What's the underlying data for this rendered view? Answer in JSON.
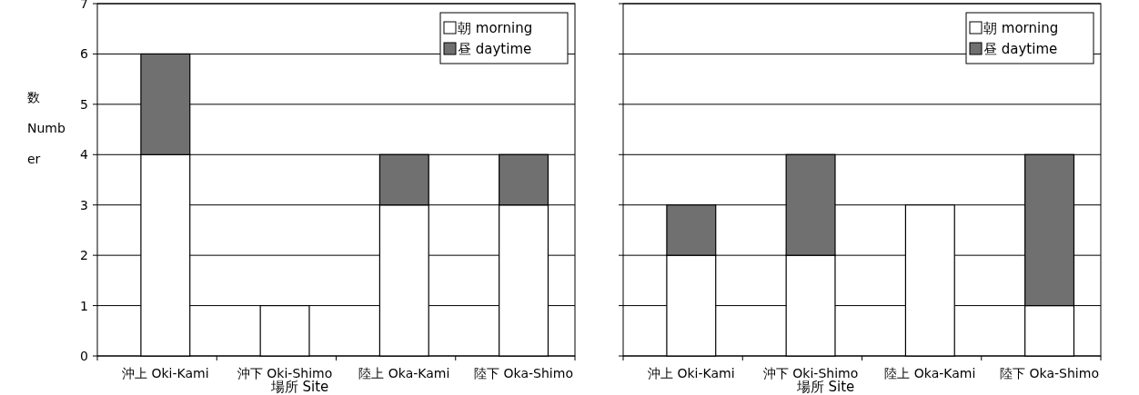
{
  "chart_data": [
    {
      "type": "bar",
      "stacked": true,
      "xlabel": "場所 Site",
      "ylabel": "数 Number",
      "categories": [
        "沖上 Oki-Kami",
        "沖下 Oki-Shimo",
        "陸上 Oka-Kami",
        "陸下 Oka-Shimo"
      ],
      "series": [
        {
          "name": "朝 morning",
          "color": "#ffffff",
          "values": [
            4,
            1,
            3,
            3
          ]
        },
        {
          "name": "昼 daytime",
          "color": "#707070",
          "values": [
            2,
            0,
            1,
            1
          ]
        }
      ],
      "ylim": [
        0,
        7
      ],
      "yticks": [
        0,
        1,
        2,
        3,
        4,
        5,
        6,
        7
      ],
      "grid": "y",
      "legend": "top right"
    },
    {
      "type": "bar",
      "stacked": true,
      "xlabel": "場所 Site",
      "categories": [
        "沖上 Oki-Kami",
        "沖下 Oki-Shimo",
        "陸上 Oka-Kami",
        "陸下 Oka-Shimo"
      ],
      "series": [
        {
          "name": "朝 morning",
          "color": "#ffffff",
          "values": [
            2,
            2,
            3,
            1
          ]
        },
        {
          "name": "昼 daytime",
          "color": "#707070",
          "values": [
            1,
            2,
            0,
            3
          ]
        }
      ],
      "ylim": [
        0,
        7
      ],
      "yticks": [
        0,
        1,
        2,
        3,
        4,
        5,
        6,
        7
      ],
      "grid": "y",
      "legend": "top right",
      "tick_labels": "x"
    }
  ]
}
